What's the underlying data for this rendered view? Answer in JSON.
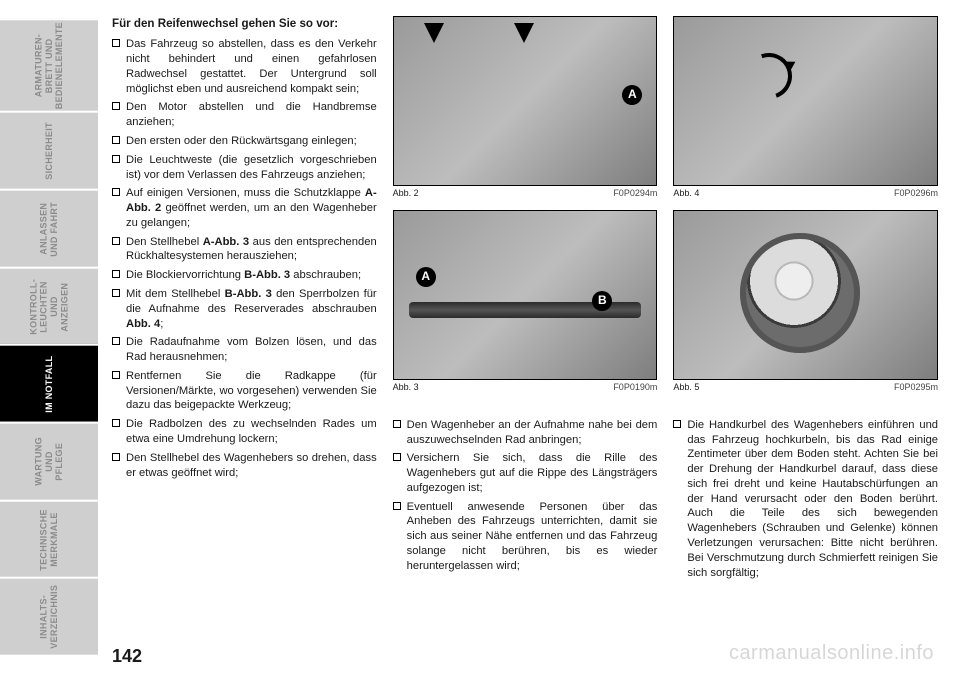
{
  "sidebar": {
    "tabs": [
      {
        "label": "ARMATUREN-\nBRETT UND\nBEDIENELEMENTE",
        "active": false
      },
      {
        "label": "SICHERHEIT",
        "active": false
      },
      {
        "label": "ANLASSEN\nUND FAHRT",
        "active": false
      },
      {
        "label": "KONTROLL-\nLEUCHTEN UND\nANZEIGEN",
        "active": false
      },
      {
        "label": "IM NOTFALL",
        "active": true
      },
      {
        "label": "WARTUNG UND\nPFLEGE",
        "active": false
      },
      {
        "label": "TECHNISCHE\nMERKMALE",
        "active": false
      },
      {
        "label": "INHALTS-\nVERZEICHNIS",
        "active": false
      }
    ]
  },
  "heading": "Für den Reifenwechsel gehen Sie so vor:",
  "col1_items": [
    "Das Fahrzeug so abstellen, dass es den Verkehr nicht behindert und einen gefahrlosen Radwechsel gestattet. Der Untergrund soll möglichst eben und ausreichend kompakt sein;",
    "Den Motor abstellen und die Handbremse anziehen;",
    "Den ersten oder den Rückwärtsgang einlegen;",
    "Die Leuchtweste (die gesetzlich vorgeschrieben ist) vor dem Verlassen des Fahrzeugs anziehen;",
    "Auf einigen Versionen, muss die Schutzklappe <b>A-Abb. 2</b> geöffnet werden, um an den Wagenheber zu gelangen;",
    "Den Stellhebel <b>A-Abb. 3</b> aus den entsprechenden Rückhaltesystemen herausziehen;",
    "Die Blockiervorrichtung <b>B-Abb. 3</b> abschrauben;",
    "Mit dem Stellhebel <b>B-Abb. 3</b> den Sperrbolzen für die Aufnahme des Reserverades abschrauben <b>Abb. 4</b>;",
    "Die Radaufnahme vom Bolzen lösen, und das Rad herausnehmen;",
    "Rentfernen Sie die Radkappe (für Versionen/Märkte, wo vorgesehen) verwenden Sie dazu das beigepackte Werkzeug;",
    "Die Radbolzen des zu wechselnden Rades um etwa eine Umdrehung lockern;",
    "Den Stellhebel des Wagenhebers so drehen, dass er etwas geöffnet wird;"
  ],
  "col2_items": [
    "Den Wagenheber an der Aufnahme nahe bei dem auszuwechselnden Rad anbringen;",
    "Versichern Sie sich, dass die Rille des Wagenhebers gut auf die Rippe des Längsträgers aufgezogen ist;",
    "Eventuell anwesende Personen über das Anheben des Fahrzeugs unterrichten, damit sie sich aus seiner Nähe entfernen und das Fahrzeug solange nicht berühren, bis es wieder heruntergelassen wird;"
  ],
  "col3_items": [
    "Die Handkurbel des Wagenhebers einführen und das Fahrzeug hochkurbeln, bis das Rad einige Zentimeter über dem Boden steht. Achten Sie bei der Drehung der Handkurbel darauf, dass diese sich frei dreht und keine Hautabschürfungen an der Hand verursacht oder den Boden berührt. Auch die Teile des sich bewegenden Wagenhebers (Schrauben und Gelenke) können Verletzungen verursachen: Bitte nicht berühren. Bei Verschmutzung durch Schmierfett reinigen Sie sich sorgfältig;"
  ],
  "figs": {
    "f2": {
      "label": "Abb. 2",
      "code": "F0P0294m",
      "bubbleA": "A"
    },
    "f3": {
      "label": "Abb. 3",
      "code": "F0P0190m",
      "bubbleA": "A",
      "bubbleB": "B"
    },
    "f4": {
      "label": "Abb. 4",
      "code": "F0P0296m"
    },
    "f5": {
      "label": "Abb. 5",
      "code": "F0P0295m"
    }
  },
  "page_number": "142",
  "watermark": "carmanualsonline.info"
}
